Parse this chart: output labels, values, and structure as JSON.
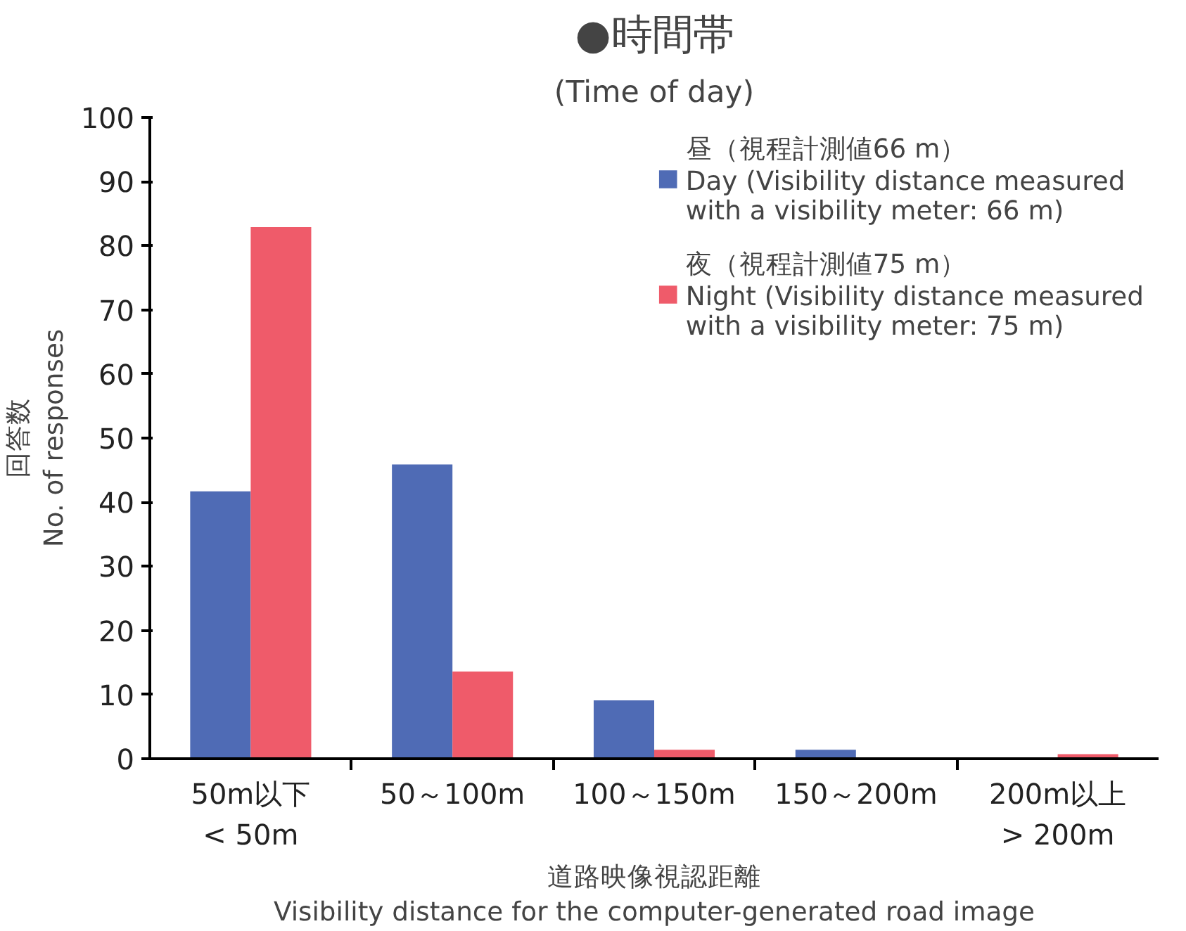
{
  "chart_data": {
    "type": "bar",
    "title": "●時間帯",
    "subtitle": "(Time of day)",
    "xlabel": "道路映像視認距離\nVisibility distance for the computer-generated road image",
    "ylabel": "回答数\nNo. of responses",
    "categories": [
      "50m以下\n< 50m",
      "50～100m",
      "100～150m",
      "150～200m",
      "200m以上\n> 200m"
    ],
    "series": [
      {
        "name": "昼（視程計測値66 m）\nDay (Visibility distance measured\nwith a visibility meter: 66 m)",
        "color": "#4f6bb5",
        "values": [
          41.7,
          45.9,
          9.1,
          1.4,
          0
        ]
      },
      {
        "name": "夜（視程計測値75 m）\nNight (Visibility distance measured\nwith a visibility meter: 75 m)",
        "color": "#ef5b6a",
        "values": [
          82.9,
          13.6,
          1.4,
          0,
          0.7
        ]
      }
    ],
    "ylim": [
      0,
      100
    ],
    "yticks": [
      0,
      10,
      20,
      30,
      40,
      50,
      60,
      70,
      80,
      90,
      100
    ],
    "grid": false,
    "legend": "top right"
  }
}
